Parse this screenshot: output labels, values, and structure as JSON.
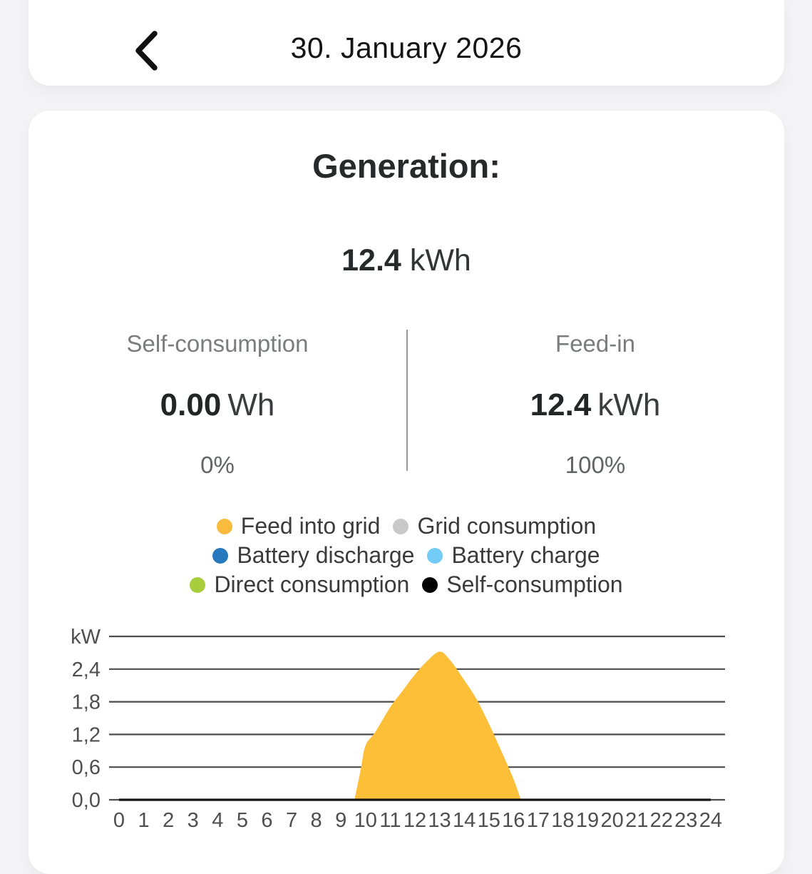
{
  "header": {
    "date": "30. January 2026",
    "back_icon": "chevron-left"
  },
  "generation": {
    "title": "Generation:",
    "total": {
      "value": "12.4",
      "unit": "kWh"
    },
    "self_consumption": {
      "label": "Self-consumption",
      "value": "0.00",
      "unit": "Wh",
      "percent": "0%"
    },
    "feed_in": {
      "label": "Feed-in",
      "value": "12.4",
      "unit": "kWh",
      "percent": "100%"
    }
  },
  "legend": {
    "rows": [
      [
        {
          "name": "feed-into-grid",
          "label": "Feed into grid",
          "color": "#F8BB3D"
        },
        {
          "name": "grid-consumption",
          "label": "Grid consumption",
          "color": "#C9C9C9"
        }
      ],
      [
        {
          "name": "battery-discharge",
          "label": "Battery discharge",
          "color": "#2779BE"
        },
        {
          "name": "battery-charge",
          "label": "Battery charge",
          "color": "#73CCF5"
        }
      ],
      [
        {
          "name": "direct-consumption",
          "label": "Direct consumption",
          "color": "#A7CC3C"
        },
        {
          "name": "self-consumption",
          "label": "Self-consumption",
          "color": "#000000"
        }
      ]
    ]
  },
  "chart_data": {
    "type": "area",
    "title": "",
    "xlabel": "",
    "ylabel": "kW",
    "x_range": [
      0,
      24
    ],
    "y_range": [
      0,
      3.0
    ],
    "grid": true,
    "grid_color": "#4c4c4c",
    "tick_color": "#4f4f51",
    "y_gridlines": [
      {
        "label": "kW",
        "value": 3.0
      },
      {
        "label": "2,4",
        "value": 2.4
      },
      {
        "label": "1,8",
        "value": 1.8
      },
      {
        "label": "1,2",
        "value": 1.2
      },
      {
        "label": "0,6",
        "value": 0.6
      },
      {
        "label": "0,0",
        "value": 0.0
      }
    ],
    "x_ticks": [
      "0",
      "1",
      "2",
      "3",
      "4",
      "5",
      "6",
      "7",
      "8",
      "9",
      "10",
      "11",
      "12",
      "13",
      "14",
      "15",
      "16",
      "17",
      "18",
      "19",
      "20",
      "21",
      "22",
      "23",
      "24"
    ],
    "series": [
      {
        "name": "Feed into grid",
        "type": "area",
        "color": "#FDBF37",
        "points": [
          [
            9.55,
            0
          ],
          [
            9.8,
            0.55
          ],
          [
            10.0,
            1.0
          ],
          [
            10.4,
            1.25
          ],
          [
            11.0,
            1.7
          ],
          [
            11.5,
            2.0
          ],
          [
            12.0,
            2.3
          ],
          [
            12.5,
            2.55
          ],
          [
            13.0,
            2.72
          ],
          [
            13.4,
            2.58
          ],
          [
            14.0,
            2.2
          ],
          [
            14.5,
            1.85
          ],
          [
            15.0,
            1.4
          ],
          [
            15.5,
            0.9
          ],
          [
            16.0,
            0.38
          ],
          [
            16.3,
            0
          ]
        ]
      },
      {
        "name": "Self-consumption",
        "type": "line",
        "color": "#141414",
        "points": [
          [
            0,
            0
          ],
          [
            24,
            0
          ]
        ]
      }
    ]
  }
}
